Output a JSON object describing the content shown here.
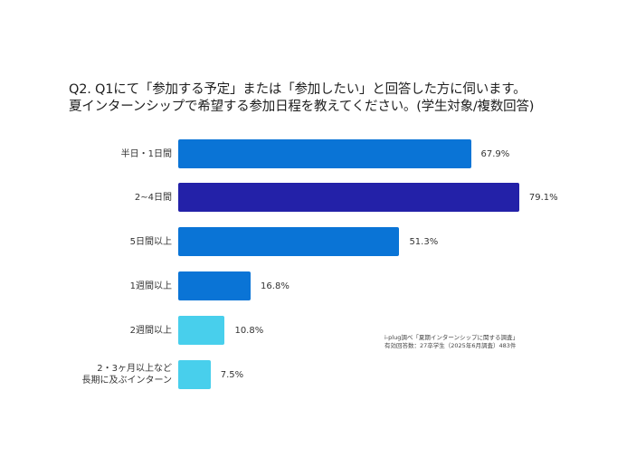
{
  "title": {
    "line1": "Q2. Q1にて「参加する予定」または「参加したい」と回答した方に伺います。",
    "line2": "夏インターンシップで希望する参加日程を教えてください。(学生対象/複数回答)"
  },
  "footnote": {
    "line1": "i-plug調べ「夏期インターンシップに関する調査」",
    "line2": "有効回答数：27卒学生（2025年6月調査）483件"
  },
  "chart_data": {
    "type": "bar",
    "orientation": "horizontal",
    "title": "Q2. Q1にて「参加する予定」または「参加したい」と回答した方に伺います。夏インターンシップで希望する参加日程を教えてください。(学生対象/複数回答)",
    "xlabel": "",
    "ylabel": "",
    "grid": false,
    "legend": null,
    "unit": "%",
    "xlim": [
      0,
      100
    ],
    "categories": [
      "半日・1日間",
      "2~4日間",
      "5日間以上",
      "1週間以上",
      "2週間以上",
      "2・3ヶ月以上など\n長期に及ぶインターン"
    ],
    "values": [
      67.9,
      79.1,
      51.3,
      16.8,
      10.8,
      7.5
    ],
    "value_labels": [
      "67.9%",
      "79.1%",
      "51.3%",
      "16.8%",
      "10.8%",
      "7.5%"
    ],
    "colors": [
      "#0a74d6",
      "#2321a8",
      "#0a74d6",
      "#0a74d6",
      "#48cfec",
      "#48cfec"
    ],
    "annotation": "i-plug調べ「夏期インターンシップに関する調査」 有効回答数：27卒学生（2025年6月調査）483件"
  }
}
